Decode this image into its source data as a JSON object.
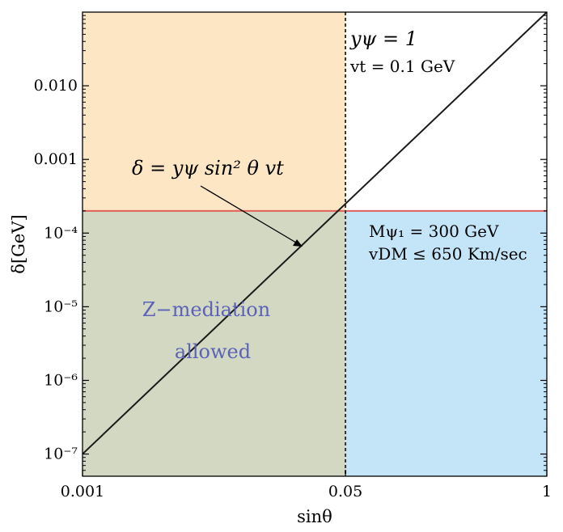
{
  "chart_data": {
    "type": "line",
    "xlabel": "sinθ",
    "ylabel": "δ[GeV]",
    "xscale": "log",
    "yscale": "log",
    "xlim": [
      0.001,
      1
    ],
    "ylim": [
      5e-08,
      0.1
    ],
    "x_ticks": [
      {
        "value": 0.001,
        "label": "0.001"
      },
      {
        "value": 0.05,
        "label": "0.05"
      },
      {
        "value": 1,
        "label": "1"
      }
    ],
    "y_ticks": [
      {
        "value": 1e-07,
        "label": "10⁻⁷"
      },
      {
        "value": 1e-06,
        "label": "10⁻⁶"
      },
      {
        "value": 1e-05,
        "label": "10⁻⁵"
      },
      {
        "value": 0.0001,
        "label": "10⁻⁴"
      },
      {
        "value": 0.001,
        "label": "0.001"
      },
      {
        "value": 0.01,
        "label": "0.010"
      }
    ],
    "series": [
      {
        "name": "δ = yψ sin²θ vt",
        "color": "#1a1a1a",
        "x": [
          0.001,
          0.05,
          1
        ],
        "y": [
          1e-07,
          0.00025,
          0.1
        ]
      }
    ],
    "horizontal_line": {
      "y": 0.0002,
      "color": "#e0605a"
    },
    "vertical_line": {
      "x": 0.05,
      "style": "dotted",
      "color": "#333333"
    },
    "regions": [
      {
        "name": "orange",
        "x": [
          0.001,
          0.05
        ],
        "y": [
          0.0002,
          0.1
        ],
        "color": "#fde6c4"
      },
      {
        "name": "olive",
        "x": [
          0.001,
          0.05
        ],
        "y": [
          5e-08,
          0.0002
        ],
        "color": "#d3d8c2"
      },
      {
        "name": "blue",
        "x": [
          0.05,
          1
        ],
        "y": [
          5e-08,
          0.0002
        ],
        "color": "#c4e4f8"
      }
    ],
    "annotations": {
      "formula": "δ = yψ sin² θ vt",
      "top_right_1": "yψ = 1",
      "top_right_2": "vt = 0.1 GeV",
      "blue_1": "Mψ₁ = 300 GeV",
      "blue_2": "vDM ≤ 650 Km/sec",
      "region_1": "Z−mediation",
      "region_2": "allowed"
    }
  }
}
